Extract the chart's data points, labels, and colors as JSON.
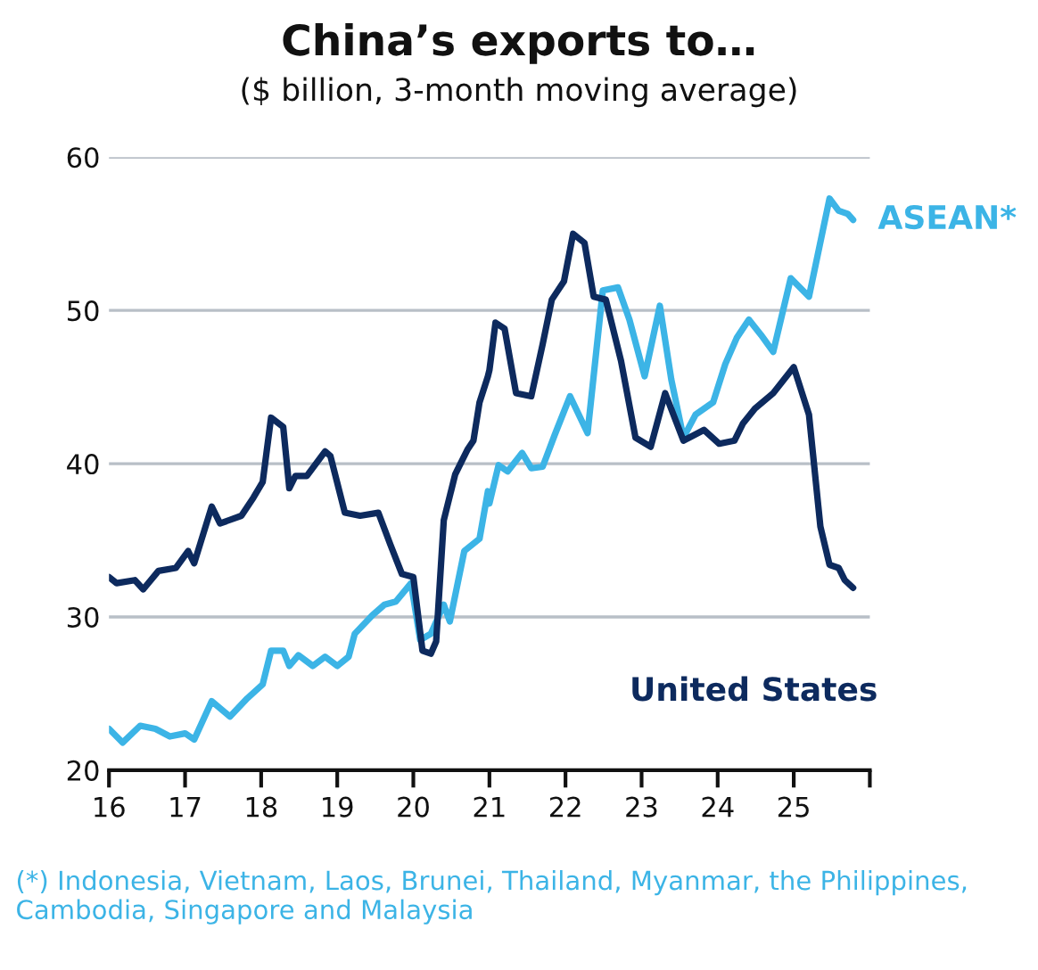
{
  "chart_data": {
    "type": "line",
    "title": "China’s exports to…",
    "subtitle": "($ billion, 3-month moving average)",
    "xlim": [
      2016,
      2026
    ],
    "xticks": [
      {
        "value": 2016,
        "label": "16"
      },
      {
        "value": 2017,
        "label": "17"
      },
      {
        "value": 2018,
        "label": "18"
      },
      {
        "value": 2019,
        "label": "19"
      },
      {
        "value": 2020,
        "label": "20"
      },
      {
        "value": 2021,
        "label": "21"
      },
      {
        "value": 2022,
        "label": "22"
      },
      {
        "value": 2023,
        "label": "23"
      },
      {
        "value": 2024,
        "label": "24"
      },
      {
        "value": 2025,
        "label": "25"
      },
      {
        "value": 2026,
        "label": null
      }
    ],
    "ylim": [
      20,
      60
    ],
    "yticks": [
      20,
      30,
      40,
      50,
      60
    ],
    "grid": "y",
    "legend": false,
    "series": [
      {
        "name": "ASEAN*",
        "color": "#3cb4e6",
        "x": [
          2016.0,
          2016.18,
          2016.41,
          2016.61,
          2016.8,
          2017.0,
          2017.12,
          2017.35,
          2017.59,
          2017.82,
          2018.02,
          2018.13,
          2018.29,
          2018.37,
          2018.49,
          2018.68,
          2018.84,
          2019.0,
          2019.15,
          2019.23,
          2019.46,
          2019.62,
          2019.77,
          2019.97,
          2020.09,
          2020.23,
          2020.4,
          2020.48,
          2020.67,
          2020.87,
          2020.98,
          2021.0,
          2021.12,
          2021.24,
          2021.43,
          2021.55,
          2021.7,
          2021.86,
          2022.06,
          2022.29,
          2022.49,
          2022.69,
          2022.84,
          2023.04,
          2023.24,
          2023.39,
          2023.55,
          2023.71,
          2023.94,
          2024.1,
          2024.25,
          2024.41,
          2024.57,
          2024.73,
          2024.96,
          2025.2,
          2025.47,
          2025.59,
          2025.71,
          2025.78
        ],
        "values": [
          22.7,
          21.8,
          22.9,
          22.7,
          22.2,
          22.4,
          22.0,
          24.5,
          23.5,
          24.7,
          25.6,
          27.8,
          27.8,
          26.8,
          27.5,
          26.8,
          27.4,
          26.8,
          27.4,
          28.9,
          30.1,
          30.8,
          31.0,
          32.2,
          28.5,
          28.9,
          30.8,
          29.7,
          34.3,
          35.1,
          38.2,
          37.4,
          39.9,
          39.5,
          40.7,
          39.7,
          39.8,
          41.9,
          44.4,
          42.0,
          51.3,
          51.5,
          49.4,
          45.7,
          50.3,
          45.5,
          41.7,
          43.2,
          44.0,
          46.5,
          48.2,
          49.4,
          48.4,
          47.3,
          52.1,
          50.9,
          57.3,
          56.5,
          56.3,
          55.9
        ]
      },
      {
        "name": "United States",
        "color": "#0d2a5e",
        "x": [
          2016.0,
          2016.1,
          2016.34,
          2016.45,
          2016.65,
          2016.88,
          2017.04,
          2017.12,
          2017.35,
          2017.46,
          2017.74,
          2017.9,
          2018.02,
          2018.13,
          2018.29,
          2018.37,
          2018.45,
          2018.6,
          2018.84,
          2018.91,
          2019.1,
          2019.3,
          2019.54,
          2019.7,
          2019.85,
          2020.0,
          2020.12,
          2020.23,
          2020.3,
          2020.4,
          2020.55,
          2020.71,
          2020.79,
          2020.87,
          2020.98,
          2021.0,
          2021.08,
          2021.2,
          2021.35,
          2021.55,
          2021.7,
          2021.82,
          2021.98,
          2022.1,
          2022.25,
          2022.37,
          2022.53,
          2022.73,
          2022.92,
          2023.12,
          2023.31,
          2023.55,
          2023.82,
          2024.02,
          2024.22,
          2024.33,
          2024.49,
          2024.73,
          2025.0,
          2025.2,
          2025.35,
          2025.47,
          2025.59,
          2025.67,
          2025.78
        ],
        "values": [
          32.6,
          32.2,
          32.4,
          31.8,
          33.0,
          33.2,
          34.3,
          33.5,
          37.2,
          36.1,
          36.6,
          37.8,
          38.8,
          43.0,
          42.4,
          38.4,
          39.2,
          39.2,
          40.8,
          40.5,
          36.8,
          36.6,
          36.8,
          34.7,
          32.8,
          32.6,
          27.8,
          27.6,
          28.4,
          36.3,
          39.3,
          40.9,
          41.5,
          44.0,
          45.7,
          46.1,
          49.2,
          48.8,
          44.6,
          44.4,
          47.8,
          50.7,
          51.9,
          55.0,
          54.4,
          50.9,
          50.7,
          46.7,
          41.7,
          41.1,
          44.6,
          41.5,
          42.2,
          41.3,
          41.5,
          42.6,
          43.6,
          44.6,
          46.3,
          43.2,
          35.9,
          33.4,
          33.2,
          32.4,
          31.9
        ]
      }
    ],
    "annotations": [
      "(*) Indonesia, Vietnam, Laos, Brunei, Thailand, Myanmar, the Philippines, Cambodia, Singapore and Malaysia"
    ]
  }
}
